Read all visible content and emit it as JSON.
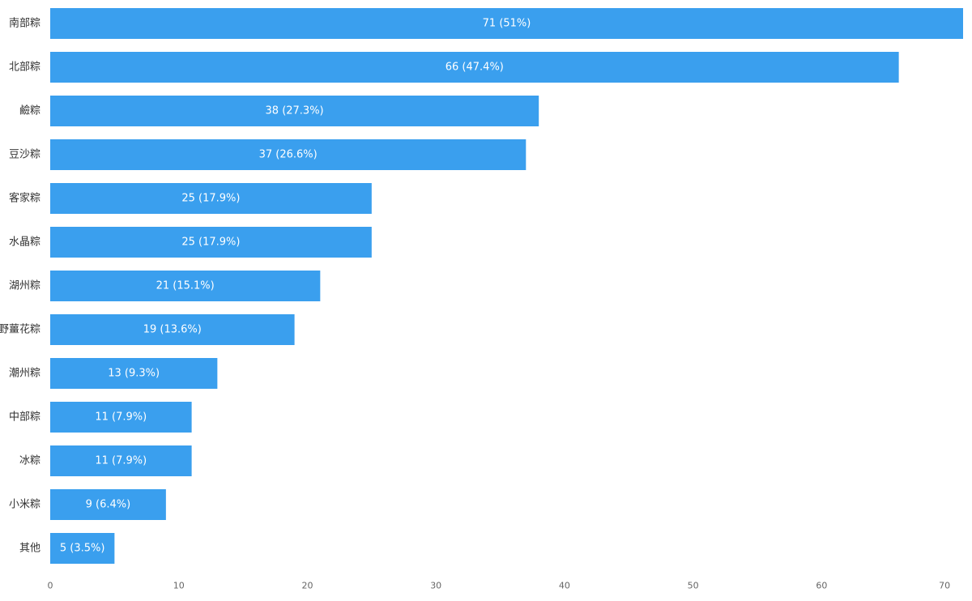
{
  "colors": {
    "bar": "#3a9fee",
    "bar_text": "#ffffff",
    "axis_text": "#666666",
    "category_text": "#333333"
  },
  "chart_data": {
    "type": "bar",
    "orientation": "horizontal",
    "categories": [
      "南部粽",
      "北部粽",
      "鹼粽",
      "豆沙粽",
      "客家粽",
      "水晶粽",
      "湖州粽",
      "野薑花粽",
      "潮州粽",
      "中部粽",
      "冰粽",
      "小米粽",
      "其他"
    ],
    "values": [
      71,
      66,
      38,
      37,
      25,
      25,
      21,
      19,
      13,
      11,
      11,
      9,
      5
    ],
    "data_labels": [
      "71 (51%)",
      "66 (47.4%)",
      "38 (27.3%)",
      "37 (26.6%)",
      "25 (17.9%)",
      "25 (17.9%)",
      "21 (15.1%)",
      "19 (13.6%)",
      "13 (9.3%)",
      "11 (7.9%)",
      "11 (7.9%)",
      "9 (6.4%)",
      "5 (3.5%)"
    ],
    "x_ticks": [
      0,
      10,
      20,
      30,
      40,
      50,
      60,
      70
    ],
    "xlim": [
      0,
      71
    ],
    "grid": false,
    "title": "",
    "xlabel": "",
    "ylabel": ""
  }
}
